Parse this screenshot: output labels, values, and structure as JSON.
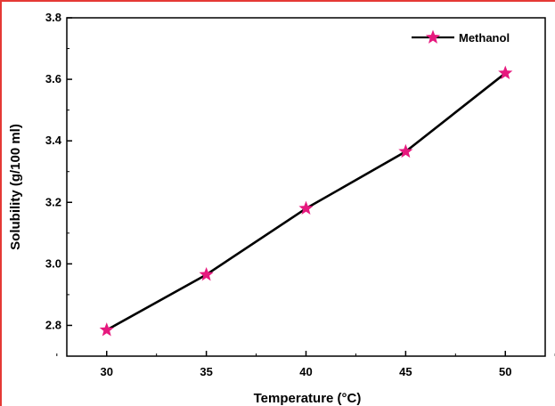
{
  "chart_data": {
    "type": "line",
    "title": "",
    "xlabel": "Temperature (°C)",
    "ylabel": "Solubility (g/100 ml)",
    "x": [
      30,
      35,
      40,
      45,
      50
    ],
    "xticks": [
      30,
      35,
      40,
      45,
      50
    ],
    "yticks": [
      2.8,
      3.0,
      3.2,
      3.4,
      3.6,
      3.8
    ],
    "xlim": [
      28,
      52
    ],
    "ylim": [
      2.7,
      3.8
    ],
    "grid": false,
    "legend_position": "top-right",
    "series": [
      {
        "name": "Methanol",
        "values": [
          2.785,
          2.965,
          3.18,
          3.365,
          3.62
        ],
        "line_color": "#000000",
        "marker": "star",
        "marker_color": "#e6197e"
      }
    ]
  },
  "frame_color": "#e53935"
}
